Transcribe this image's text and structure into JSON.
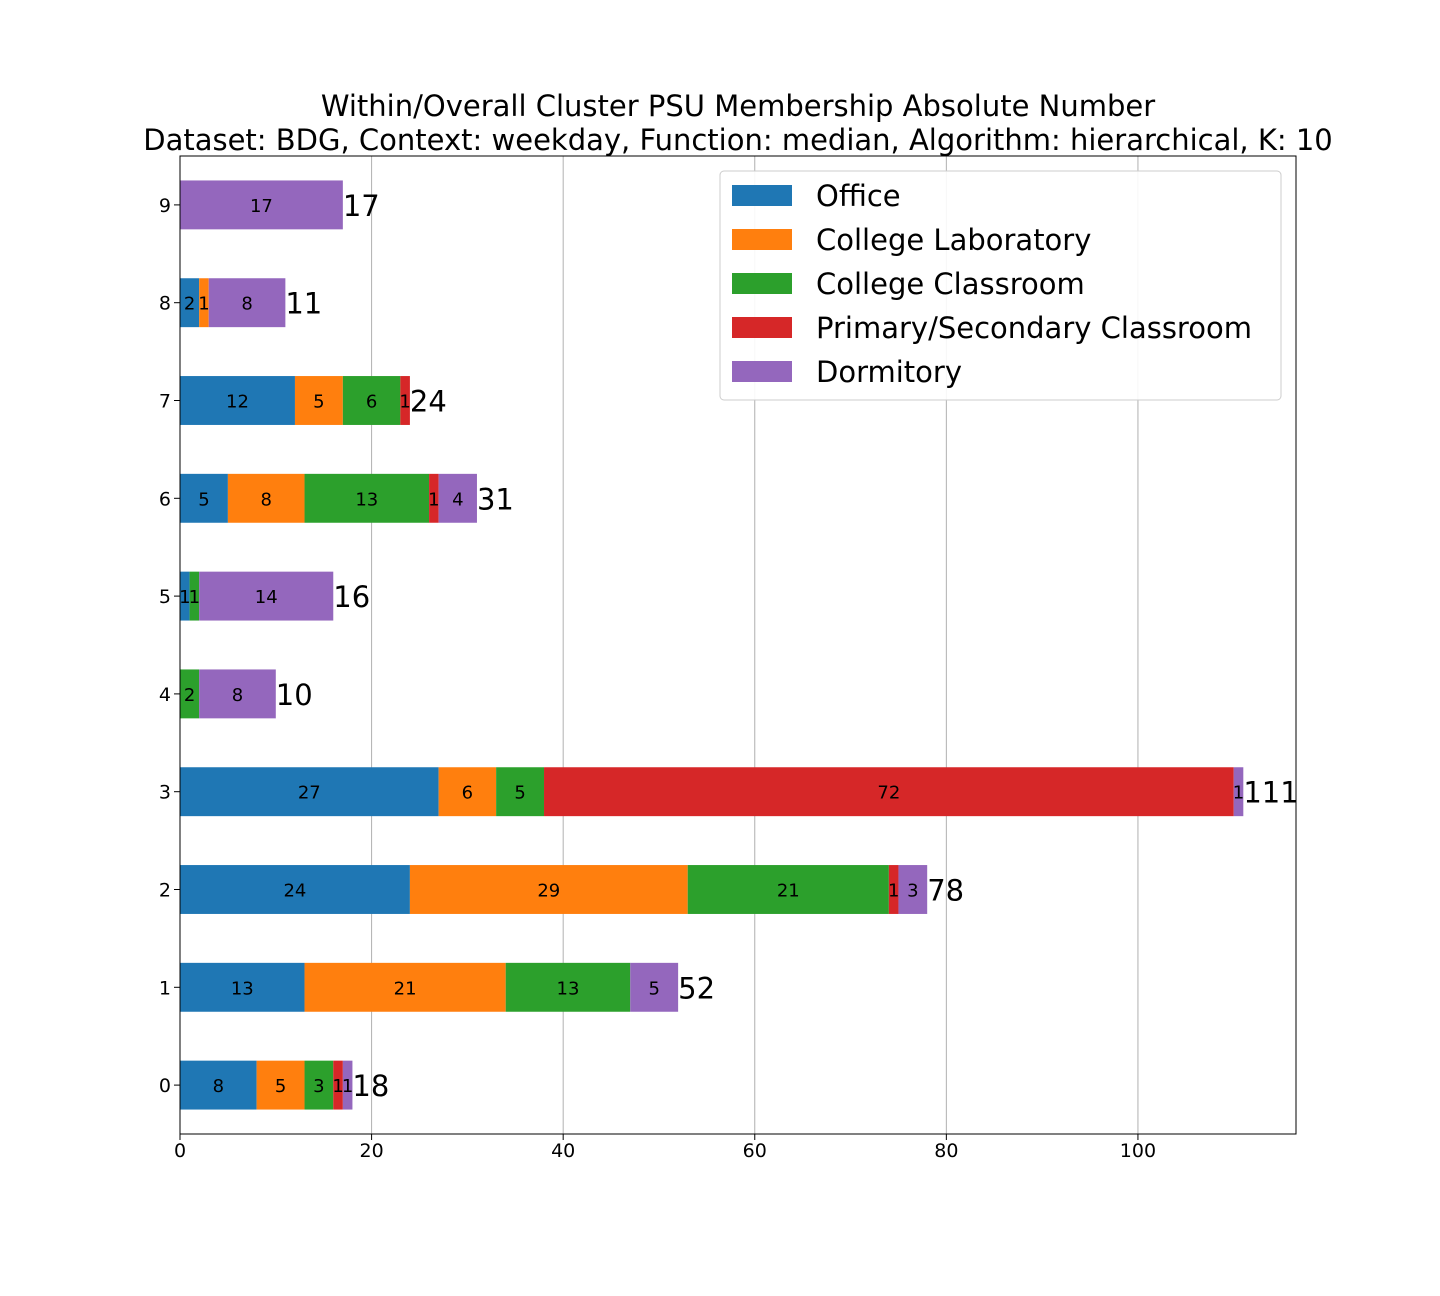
{
  "chart_data": {
    "type": "bar",
    "orientation": "horizontal",
    "stacked": true,
    "title": "Within/Overall Cluster PSU Membership Absolute Number",
    "subtitle": "Dataset: BDG, Context: weekday, Function: median, Algorithm: hierarchical, K: 10",
    "xlabel": "",
    "ylabel": "",
    "categories": [
      "0",
      "1",
      "2",
      "3",
      "4",
      "5",
      "6",
      "7",
      "8",
      "9"
    ],
    "xlim": [
      0,
      116.5
    ],
    "xticks": [
      "0",
      "20",
      "40",
      "60",
      "80",
      "100"
    ],
    "grid": "vertical",
    "legend_position": "top-right",
    "series": [
      {
        "name": "Office",
        "color": "#1f77b4",
        "values": [
          8,
          13,
          24,
          27,
          0,
          1,
          5,
          12,
          2,
          0
        ]
      },
      {
        "name": "College Laboratory",
        "color": "#ff7f0e",
        "values": [
          5,
          21,
          29,
          6,
          0,
          0,
          8,
          5,
          1,
          0
        ]
      },
      {
        "name": "College Classroom",
        "color": "#2ca02c",
        "values": [
          3,
          13,
          21,
          5,
          2,
          1,
          13,
          6,
          0,
          0
        ]
      },
      {
        "name": "Primary/Secondary Classroom",
        "color": "#d62728",
        "values": [
          1,
          0,
          1,
          72,
          0,
          0,
          1,
          1,
          0,
          0
        ]
      },
      {
        "name": "Dormitory",
        "color": "#9467bd",
        "values": [
          1,
          5,
          3,
          1,
          8,
          14,
          4,
          0,
          8,
          17
        ]
      }
    ],
    "totals": [
      18,
      52,
      78,
      111,
      10,
      16,
      31,
      24,
      11,
      17
    ]
  }
}
